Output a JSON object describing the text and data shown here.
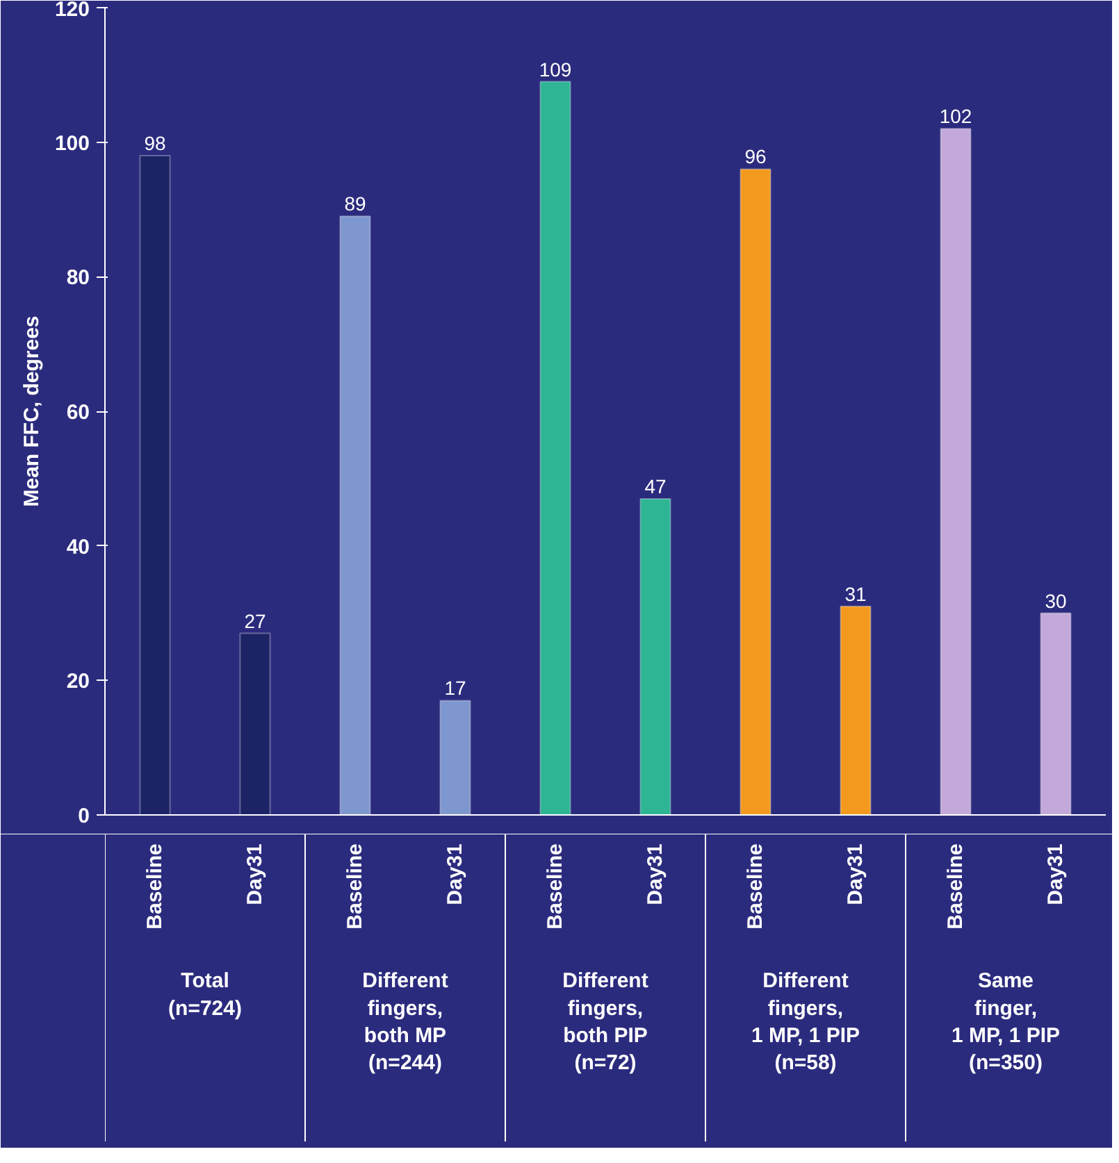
{
  "chart_data": {
    "type": "bar",
    "ylabel": "Mean FFC, degrees",
    "categories": [
      "Baseline",
      "Day31",
      "Baseline",
      "Day31",
      "Baseline",
      "Day31",
      "Baseline",
      "Day31",
      "Baseline",
      "Day31"
    ],
    "values": [
      98,
      27,
      89,
      17,
      109,
      47,
      96,
      31,
      102,
      30
    ],
    "colors": [
      "#1c2466",
      "#1c2466",
      "#7f97cf",
      "#7f97cf",
      "#2db594",
      "#2db594",
      "#f39a1e",
      "#f39a1e",
      "#c3a9d9",
      "#c3a9d9"
    ],
    "ylim": [
      0,
      120
    ],
    "yticks": [
      0,
      20,
      40,
      60,
      80,
      100,
      120
    ],
    "grid": false,
    "data_labels": true,
    "annotations": [
      "Total\n(n=724)",
      "Different\nfingers,\nboth MP\n(n=244)",
      "Different\nfingers,\nboth PIP\n(n=72)",
      "Different\nfingers,\n1 MP, 1 PIP\n(n=58)",
      "Same\nfinger,\n1 MP, 1 PIP\n(n=350)"
    ]
  }
}
